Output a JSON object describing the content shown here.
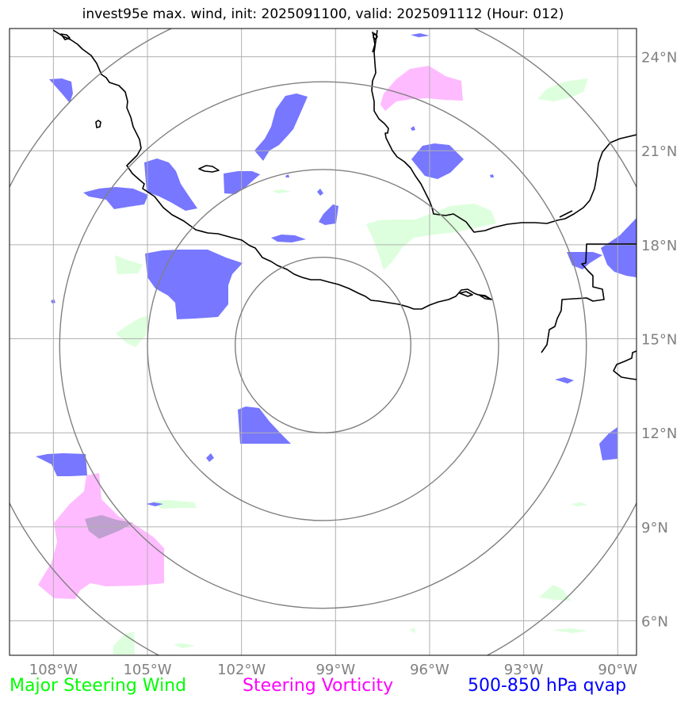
{
  "title": "invest95e max. wind, init: 2025091100, valid: 2025091112 (Hour: 012)",
  "map": {
    "lon_range": [
      -109.4,
      -89.4
    ],
    "lat_range": [
      4.9,
      24.9
    ],
    "center": {
      "lon": -99.4,
      "lat": 14.8
    },
    "lon_ticks": [
      {
        "value": -108,
        "label": "108°W"
      },
      {
        "value": -105,
        "label": "105°W"
      },
      {
        "value": -102,
        "label": "102°W"
      },
      {
        "value": -99,
        "label": "99°W"
      },
      {
        "value": -96,
        "label": "96°W"
      },
      {
        "value": -93,
        "label": "93°W"
      },
      {
        "value": -90,
        "label": "90°W"
      }
    ],
    "lat_ticks": [
      {
        "value": 24,
        "label": "24°N"
      },
      {
        "value": 21,
        "label": "21°N"
      },
      {
        "value": 18,
        "label": "18°N"
      },
      {
        "value": 15,
        "label": "15°N"
      },
      {
        "value": 12,
        "label": "12°N"
      },
      {
        "value": 9,
        "label": "9°N"
      },
      {
        "value": 6,
        "label": "6°N"
      }
    ],
    "range_rings_deg": [
      2.8,
      5.6,
      8.4,
      11.2
    ],
    "colors": {
      "grid": "#b0b0b0",
      "ring": "#808080",
      "coast": "#000000",
      "wind": "#ddffdd",
      "vorticity": "#ffbbff",
      "qvap": "#7777ff",
      "overlap": "#c0a0d0"
    }
  },
  "legend": {
    "wind": "Major Steering Wind",
    "vorticity": "Steering Vorticity",
    "qvap": "500-850 hPa qvap"
  }
}
